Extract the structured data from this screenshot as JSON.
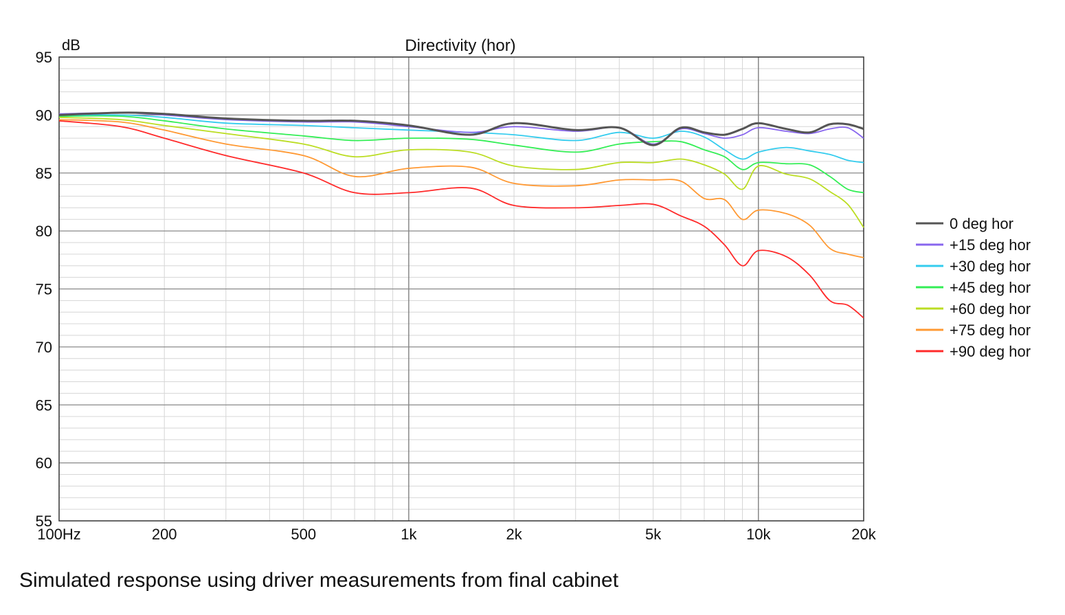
{
  "caption": "Simulated response using driver measurements from final cabinet",
  "chart_data": {
    "type": "line",
    "title": "Directivity (hor)",
    "ylabel": "dB",
    "xlabel": "",
    "xscale": "log",
    "xlim": [
      100,
      20000
    ],
    "ylim": [
      55,
      95
    ],
    "grid": true,
    "legend_position": "right",
    "yticks": [
      {
        "value": 95,
        "label": "95"
      },
      {
        "value": 90,
        "label": "90"
      },
      {
        "value": 85,
        "label": "85"
      },
      {
        "value": 80,
        "label": "80"
      },
      {
        "value": 75,
        "label": "75"
      },
      {
        "value": 70,
        "label": "70"
      },
      {
        "value": 65,
        "label": "65"
      },
      {
        "value": 60,
        "label": "60"
      },
      {
        "value": 55,
        "label": "55"
      }
    ],
    "xticks": [
      {
        "value": 100,
        "label": "100Hz"
      },
      {
        "value": 200,
        "label": "200"
      },
      {
        "value": 500,
        "label": "500"
      },
      {
        "value": 1000,
        "label": "1k"
      },
      {
        "value": 2000,
        "label": "2k"
      },
      {
        "value": 5000,
        "label": "5k"
      },
      {
        "value": 10000,
        "label": "10k"
      },
      {
        "value": 20000,
        "label": "20k"
      }
    ],
    "x": [
      100,
      150,
      200,
      300,
      500,
      700,
      1000,
      1500,
      2000,
      3000,
      4000,
      5000,
      6000,
      7000,
      8000,
      9000,
      10000,
      12000,
      14000,
      16000,
      18000,
      20000
    ],
    "series": [
      {
        "name": "+90 deg hor",
        "color": "#ff2a2a",
        "values": [
          89.5,
          89.0,
          88.0,
          86.5,
          85.0,
          83.3,
          83.3,
          83.7,
          82.2,
          82.0,
          82.2,
          82.3,
          81.3,
          80.4,
          78.8,
          77.0,
          78.3,
          77.8,
          76.2,
          74.0,
          73.6,
          72.5
        ]
      },
      {
        "name": "+75 deg hor",
        "color": "#ff9933",
        "values": [
          89.6,
          89.4,
          88.7,
          87.5,
          86.5,
          84.7,
          85.4,
          85.5,
          84.1,
          83.9,
          84.4,
          84.4,
          84.3,
          82.8,
          82.7,
          81.0,
          81.8,
          81.5,
          80.5,
          78.5,
          78.0,
          77.7
        ]
      },
      {
        "name": "+60 deg hor",
        "color": "#bbdd22",
        "values": [
          89.8,
          89.6,
          89.1,
          88.4,
          87.5,
          86.4,
          87.0,
          86.8,
          85.6,
          85.3,
          85.9,
          85.9,
          86.2,
          85.7,
          84.9,
          83.6,
          85.6,
          84.9,
          84.5,
          83.4,
          82.3,
          80.3
        ]
      },
      {
        "name": "+45 deg hor",
        "color": "#33ee55",
        "values": [
          89.9,
          89.9,
          89.5,
          88.8,
          88.2,
          87.8,
          88.0,
          87.9,
          87.4,
          86.8,
          87.5,
          87.7,
          87.7,
          87.0,
          86.4,
          85.3,
          85.9,
          85.8,
          85.7,
          84.7,
          83.6,
          83.3
        ]
      },
      {
        "name": "+30 deg hor",
        "color": "#33ccee",
        "values": [
          90.0,
          90.0,
          89.8,
          89.3,
          89.1,
          88.9,
          88.7,
          88.5,
          88.3,
          87.8,
          88.5,
          88.0,
          88.6,
          88.1,
          87.0,
          86.2,
          86.8,
          87.2,
          86.9,
          86.6,
          86.1,
          85.9
        ]
      },
      {
        "name": "+15 deg hor",
        "color": "#8866ee",
        "values": [
          90.1,
          90.2,
          90.0,
          89.6,
          89.4,
          89.4,
          89.0,
          88.5,
          89.0,
          88.6,
          88.9,
          87.5,
          88.8,
          88.4,
          88.0,
          88.3,
          88.9,
          88.6,
          88.4,
          88.8,
          88.9,
          88.0
        ]
      },
      {
        "name": "0 deg hor",
        "color": "#555555",
        "values": [
          90.0,
          90.2,
          90.1,
          89.7,
          89.5,
          89.5,
          89.1,
          88.3,
          89.3,
          88.7,
          88.9,
          87.4,
          88.9,
          88.5,
          88.3,
          88.8,
          89.3,
          88.8,
          88.5,
          89.2,
          89.2,
          88.8
        ]
      }
    ]
  }
}
